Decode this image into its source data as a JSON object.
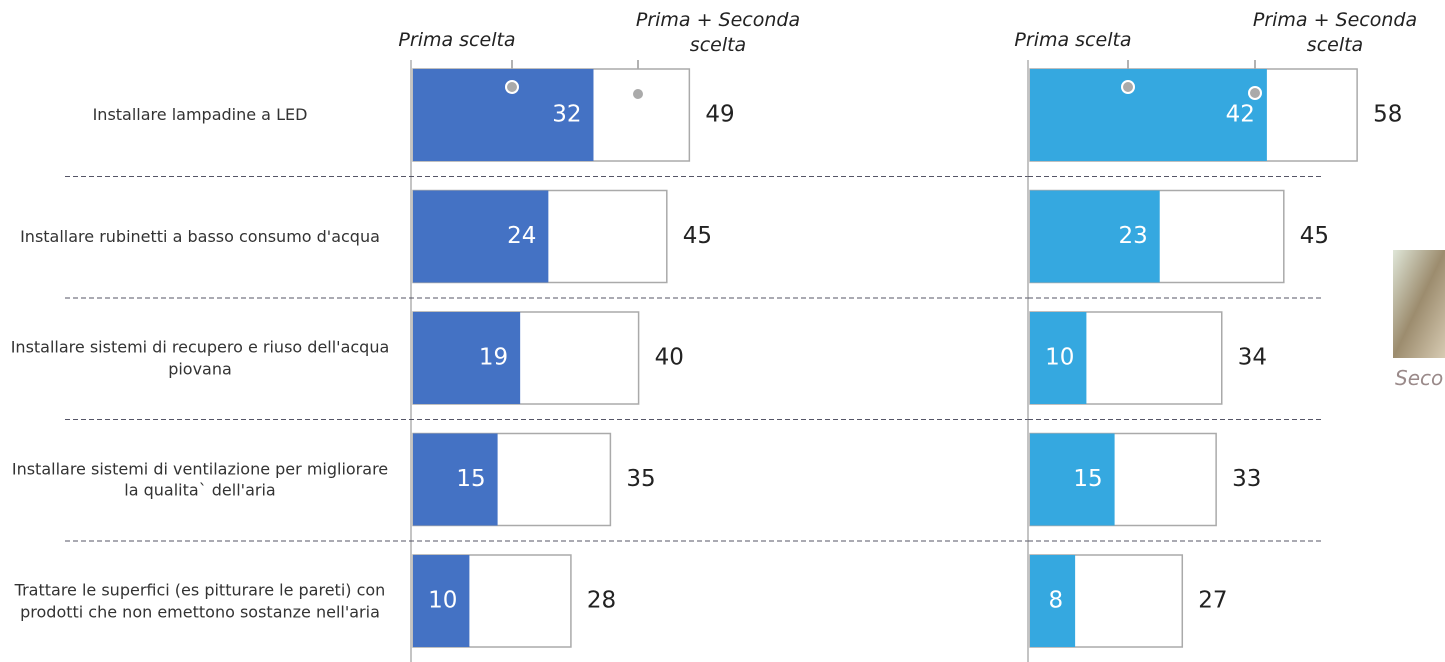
{
  "chart_data": [
    {
      "type": "bar",
      "categories": [
        "Installare lampadine a LED",
        "Installare rubinetti a basso consumo d'acqua",
        "Installare sistemi di recupero e riuso dell'acqua piovana",
        "Installare sistemi di ventilazione per migliorare la qualita` dell'aria",
        "Trattare le superfici (es pitturare le pareti) con prodotti che non emettono sostanze nell'aria"
      ],
      "series": [
        {
          "name": "Prima scelta",
          "color": "#4472c4",
          "values": [
            32,
            24,
            19,
            15,
            10
          ]
        },
        {
          "name": "Prima + Seconda scelta",
          "color": "#ffffff",
          "values": [
            49,
            45,
            40,
            35,
            28
          ]
        }
      ]
    },
    {
      "type": "bar",
      "categories": [
        null,
        null,
        null,
        null,
        null
      ],
      "series": [
        {
          "name": "Prima scelta",
          "color": "#35a8e0",
          "values": [
            42,
            23,
            10,
            15,
            8
          ]
        },
        {
          "name": "Prima + Seconda scelta",
          "color": "#ffffff",
          "values": [
            58,
            45,
            34,
            33,
            27
          ]
        }
      ]
    }
  ],
  "side_image": {
    "caption": "Seco"
  }
}
